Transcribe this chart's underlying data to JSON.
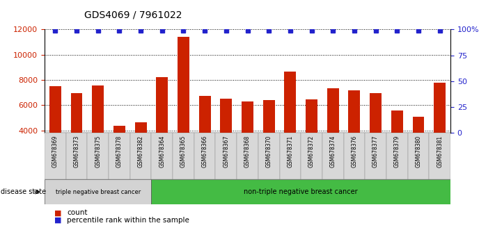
{
  "title": "GDS4069 / 7961022",
  "samples": [
    "GSM678369",
    "GSM678373",
    "GSM678375",
    "GSM678378",
    "GSM678382",
    "GSM678364",
    "GSM678365",
    "GSM678366",
    "GSM678367",
    "GSM678368",
    "GSM678370",
    "GSM678371",
    "GSM678372",
    "GSM678374",
    "GSM678376",
    "GSM678377",
    "GSM678379",
    "GSM678380",
    "GSM678381"
  ],
  "counts": [
    7500,
    6950,
    7550,
    4350,
    4650,
    8200,
    11400,
    6750,
    6500,
    6300,
    6400,
    8650,
    6450,
    7350,
    7150,
    6950,
    5550,
    5050,
    7800
  ],
  "percentile": [
    99,
    99,
    99,
    99,
    99,
    99,
    99,
    99,
    99,
    99,
    99,
    99,
    99,
    99,
    99,
    99,
    99,
    99,
    99
  ],
  "bar_color": "#cc2200",
  "percentile_color": "#2222cc",
  "ylim_left": [
    3800,
    12000
  ],
  "ylim_right": [
    0,
    100
  ],
  "yticks_left": [
    4000,
    6000,
    8000,
    10000,
    12000
  ],
  "yticks_right": [
    0,
    25,
    50,
    75,
    100
  ],
  "ytick_labels_right": [
    "0",
    "25",
    "50",
    "75",
    "100%"
  ],
  "group1_count": 5,
  "group2_count": 14,
  "group1_label": "triple negative breast cancer",
  "group2_label": "non-triple negative breast cancer",
  "disease_state_label": "disease state",
  "legend_count_label": "count",
  "legend_percentile_label": "percentile rank within the sample",
  "bg_color": "#ffffff",
  "tick_color_left": "#cc2200",
  "tick_color_right": "#2222cc",
  "group1_bg": "#d3d3d3",
  "group2_bg": "#44bb44",
  "bar_width": 0.55
}
